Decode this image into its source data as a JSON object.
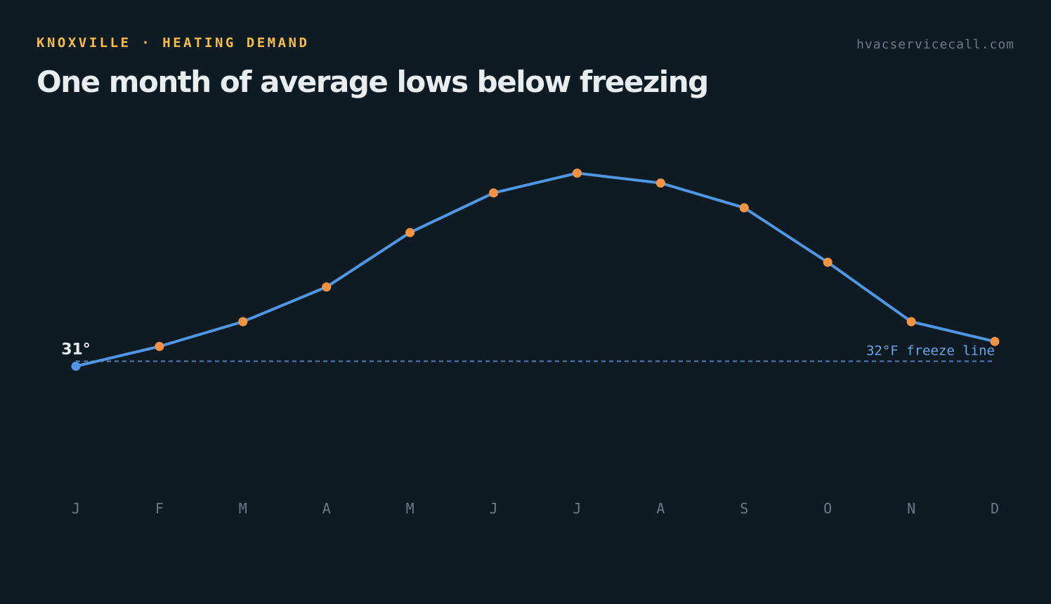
{
  "header": {
    "eyebrow": "KNOXVILLE · HEATING DEMAND",
    "site": "hvacservicecall.com",
    "title": "One month of average lows below freezing"
  },
  "colors": {
    "background": "#0f1b23",
    "eyebrow": "#f5bd42",
    "line": "#4f97e3",
    "point_above": "#f59340",
    "point_below": "#4f97e3",
    "freeze_line": "#4f7fb5",
    "text": "#e8edf0",
    "muted": "#6b7a86"
  },
  "chart_data": {
    "type": "line",
    "title": "One month of average lows below freezing",
    "categories": [
      "J",
      "F",
      "M",
      "A",
      "M",
      "J",
      "J",
      "A",
      "S",
      "O",
      "N",
      "D"
    ],
    "series": [
      {
        "values": [
          31,
          35,
          40,
          47,
          58,
          66,
          70,
          68,
          63,
          52,
          40,
          36
        ]
      }
    ],
    "reference_line": {
      "value": 32,
      "label": "32°F freeze line"
    },
    "point_labels": [
      {
        "index": 0,
        "label": "31°"
      }
    ],
    "xlabel": "",
    "ylabel": "",
    "ylim": [
      0,
      100
    ],
    "grid": false,
    "legend": "none"
  }
}
